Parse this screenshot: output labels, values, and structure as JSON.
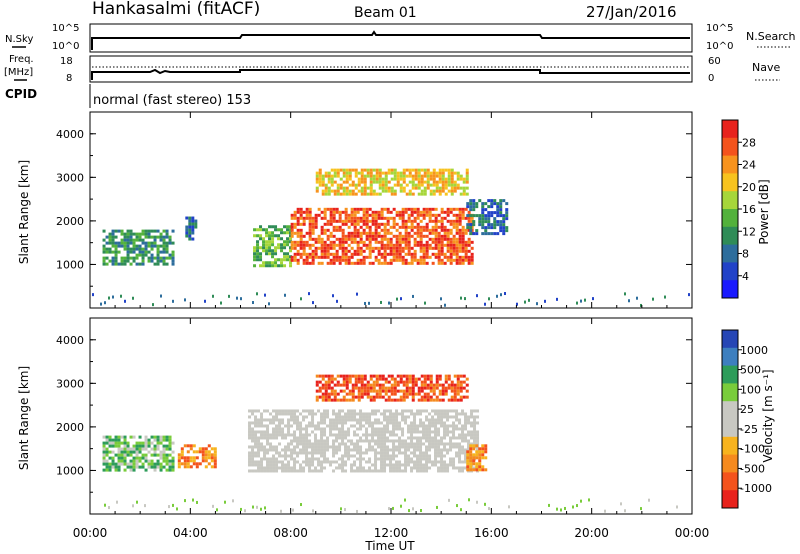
{
  "header": {
    "station": "Hankasalmi (fitACF)",
    "beam": "Beam 01",
    "date": "27/Jan/2016",
    "cpid_label": "CPID",
    "cpid_value": "normal (fast stereo) 153"
  },
  "meta_rows": {
    "nsky": {
      "left_label": "N.Sky",
      "left_ticks": [
        "10^5",
        "10^0"
      ],
      "right_label": "N.Search",
      "right_ticks": [
        "10^5",
        "10^0"
      ]
    },
    "freq": {
      "left_label_1": "Freq.",
      "left_label_2": "[MHz]",
      "left_ticks": [
        "18",
        "8"
      ],
      "right_label": "Nave",
      "right_ticks": [
        "60",
        "0"
      ]
    }
  },
  "axes": {
    "ylabel": "Slant Range [km]",
    "yticks": [
      "4000",
      "3000",
      "2000",
      "1000"
    ],
    "xticks": [
      "00:00",
      "04:00",
      "08:00",
      "12:00",
      "16:00",
      "20:00",
      "00:00"
    ],
    "xlabel": "Time UT"
  },
  "colorbars": {
    "power": {
      "label": "Power [dB]",
      "ticks": [
        "28",
        "24",
        "20",
        "16",
        "12",
        "8",
        "4"
      ],
      "colors": [
        "#e8221c",
        "#f4531c",
        "#f7931e",
        "#f7c31f",
        "#a6d63a",
        "#53b23c",
        "#2f8c57",
        "#2d6d9c",
        "#2142c8",
        "#1a1aff"
      ]
    },
    "velocity": {
      "label": "Velocity [m s⁻¹]",
      "ticks": [
        "1000",
        "500",
        "100",
        "25",
        "-25",
        "-100",
        "-500",
        "-1000"
      ],
      "colors": [
        "#2646b5",
        "#3d7fbf",
        "#2d9c5a",
        "#79cc3b",
        "#c8c8c2",
        "#c8c8c2",
        "#f7b31e",
        "#f58a1e",
        "#f4531c",
        "#e8221c"
      ]
    }
  },
  "chart_data": [
    {
      "type": "heatmap",
      "title": "Power",
      "x_range_hours": [
        0,
        24
      ],
      "ylim": [
        0,
        4500
      ],
      "colorbar_label": "Power [dB]",
      "regions": [
        {
          "x": [
            0.5,
            3.3
          ],
          "y": [
            1000,
            1800
          ],
          "value": 10
        },
        {
          "x": [
            3.8,
            4.2
          ],
          "y": [
            1600,
            2100
          ],
          "value": 8
        },
        {
          "x": [
            6.5,
            8.0
          ],
          "y": [
            1000,
            1900
          ],
          "value": 12
        },
        {
          "x": [
            8.0,
            15.2
          ],
          "y": [
            1000,
            2300
          ],
          "value": 24
        },
        {
          "x": [
            9.0,
            15.0
          ],
          "y": [
            2600,
            3200
          ],
          "value": 18
        },
        {
          "x": [
            15.0,
            16.6
          ],
          "y": [
            1700,
            2500
          ],
          "value": 8
        }
      ]
    },
    {
      "type": "heatmap",
      "title": "Velocity",
      "x_range_hours": [
        0,
        24
      ],
      "ylim": [
        0,
        4500
      ],
      "colorbar_label": "Velocity [m s⁻¹]",
      "regions": [
        {
          "x": [
            0.5,
            3.3
          ],
          "y": [
            1000,
            1800
          ],
          "value": 100
        },
        {
          "x": [
            3.5,
            5.0
          ],
          "y": [
            1100,
            1600
          ],
          "value": -100
        },
        {
          "x": [
            6.3,
            15.5
          ],
          "y": [
            1000,
            2400
          ],
          "value": 0
        },
        {
          "x": [
            9.0,
            15.0
          ],
          "y": [
            2600,
            3200
          ],
          "value": -300
        },
        {
          "x": [
            15.0,
            15.8
          ],
          "y": [
            1000,
            1600
          ],
          "value": -100
        }
      ]
    }
  ]
}
